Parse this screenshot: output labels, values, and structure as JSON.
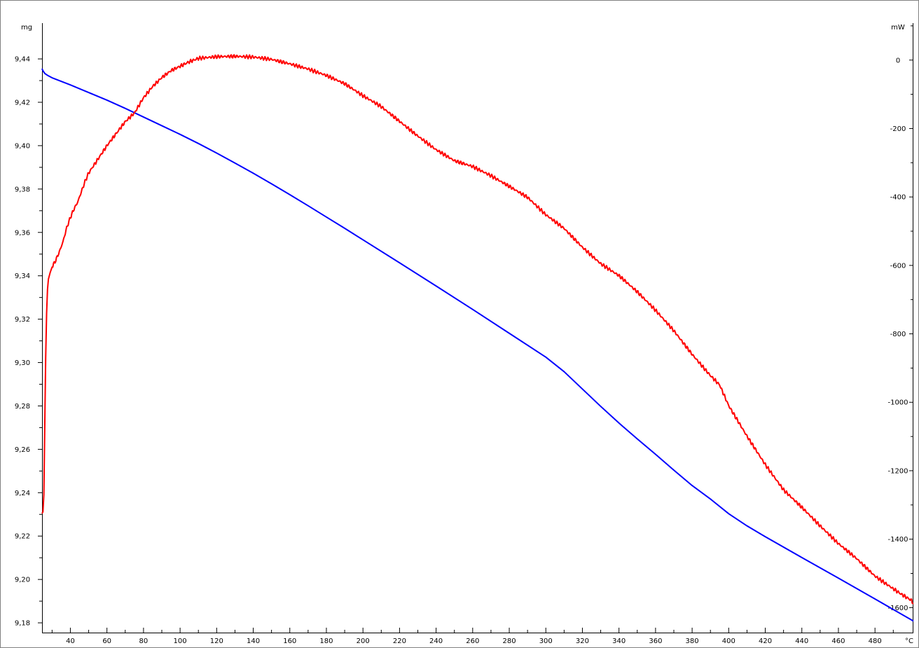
{
  "chart_data": {
    "type": "line",
    "units": {
      "left": "mg",
      "right": "mW",
      "x": "°C"
    },
    "x_ticks": [
      40,
      60,
      80,
      100,
      120,
      140,
      160,
      180,
      200,
      220,
      240,
      260,
      280,
      300,
      320,
      340,
      360,
      380,
      400,
      420,
      440,
      460,
      480
    ],
    "xlim": [
      24.5,
      501
    ],
    "left_ticks": [
      "9,18",
      "9,20",
      "9,22",
      "9,24",
      "9,26",
      "9,28",
      "9,30",
      "9,32",
      "9,34",
      "9,36",
      "9,38",
      "9,40",
      "9,42",
      "9,44"
    ],
    "left_ylim": [
      9.1755,
      9.4565
    ],
    "right_ticks": [
      "0",
      "-200",
      "-400",
      "-600",
      "-800",
      "-1000",
      "-1200",
      "-1400",
      "-1600"
    ],
    "right_ylim": [
      -1673,
      108
    ],
    "grid": false,
    "legend": "none",
    "series": [
      {
        "axis": "left",
        "color": "#0000ff",
        "x": [
          24.5,
          25,
          26,
          27,
          28,
          30,
          40,
          50,
          60,
          70,
          80,
          90,
          100,
          110,
          120,
          130,
          140,
          150,
          160,
          170,
          180,
          190,
          200,
          220,
          240,
          260,
          280,
          300,
          310,
          320,
          330,
          340,
          350,
          360,
          370,
          380,
          390,
          400,
          410,
          420,
          440,
          460,
          480,
          500,
          501
        ],
        "y": [
          9.4355,
          9.4345,
          9.4333,
          9.4327,
          9.4322,
          9.4313,
          9.428,
          9.4245,
          9.421,
          9.4172,
          9.4132,
          9.4092,
          9.4052,
          9.401,
          9.3966,
          9.392,
          9.3873,
          9.3824,
          9.3774,
          9.3723,
          9.3671,
          9.3619,
          9.3566,
          9.346,
          9.3353,
          9.3245,
          9.3135,
          9.3025,
          9.2958,
          9.2878,
          9.2798,
          9.2721,
          9.2648,
          9.2577,
          9.2504,
          9.2433,
          9.2371,
          9.2303,
          9.2247,
          9.2197,
          9.2101,
          9.2006,
          9.191,
          9.1813,
          9.1808
        ]
      },
      {
        "axis": "right",
        "color": "#ff0000",
        "x": [
          24.5,
          25,
          25.5,
          26,
          26.5,
          27,
          27.5,
          28,
          29,
          30,
          32,
          34,
          36,
          38,
          40,
          42,
          44,
          46,
          48,
          50,
          55,
          60,
          65,
          70,
          75,
          80,
          85,
          90,
          95,
          100,
          105,
          110,
          120,
          130,
          140,
          150,
          160,
          170,
          180,
          190,
          200,
          210,
          220,
          230,
          240,
          250,
          260,
          270,
          280,
          290,
          300,
          310,
          320,
          330,
          340,
          350,
          360,
          370,
          380,
          390,
          395,
          400,
          410,
          420,
          430,
          440,
          450,
          460,
          470,
          480,
          490,
          495,
          500,
          501
        ],
        "y": [
          -1325,
          -1320,
          -1270,
          -1070,
          -870,
          -740,
          -670,
          -640,
          -620,
          -605,
          -585,
          -560,
          -530,
          -490,
          -460,
          -435,
          -415,
          -385,
          -355,
          -330,
          -290,
          -250,
          -215,
          -180,
          -155,
          -110,
          -77,
          -51,
          -31,
          -18,
          -5,
          5,
          10,
          11,
          9,
          2,
          -11,
          -26,
          -45,
          -69,
          -104,
          -136,
          -179,
          -222,
          -262,
          -294,
          -311,
          -338,
          -369,
          -401,
          -452,
          -492,
          -547,
          -595,
          -630,
          -677,
          -731,
          -791,
          -860,
          -922,
          -949,
          -1010,
          -1099,
          -1182,
          -1256,
          -1307,
          -1361,
          -1413,
          -1457,
          -1508,
          -1545,
          -1563,
          -1579,
          -1589
        ]
      }
    ]
  }
}
